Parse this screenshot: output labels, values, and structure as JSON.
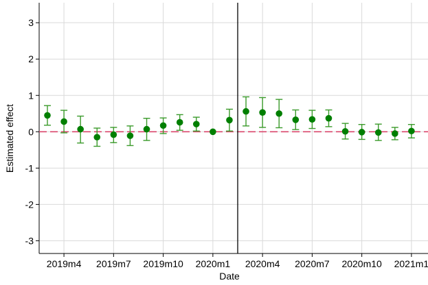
{
  "chart_data": {
    "type": "scatter",
    "title": "",
    "xlabel": "Date",
    "ylabel": "Estimated effect",
    "ylim": [
      -3.35,
      3.55
    ],
    "y_ticks": [
      "-3",
      "-2",
      "-1",
      "0",
      "1",
      "2",
      "3"
    ],
    "x_ticks": [
      "2019m4",
      "2019m7",
      "2019m10",
      "2020m1",
      "2020m4",
      "2020m7",
      "2020m10",
      "2021m1"
    ],
    "x_domain": [
      "2019m3",
      "2021m2"
    ],
    "event_line_x": "2020m2.5",
    "reference_line_y": 0,
    "grid": true,
    "series": [
      {
        "points": [
          {
            "x": "2019m3",
            "y": 0.45,
            "lo": 0.18,
            "hi": 0.72
          },
          {
            "x": "2019m4",
            "y": 0.28,
            "lo": -0.03,
            "hi": 0.59
          },
          {
            "x": "2019m5",
            "y": 0.07,
            "lo": -0.31,
            "hi": 0.43
          },
          {
            "x": "2019m6",
            "y": -0.15,
            "lo": -0.4,
            "hi": 0.1
          },
          {
            "x": "2019m7",
            "y": -0.08,
            "lo": -0.3,
            "hi": 0.12
          },
          {
            "x": "2019m8",
            "y": -0.11,
            "lo": -0.38,
            "hi": 0.16
          },
          {
            "x": "2019m9",
            "y": 0.07,
            "lo": -0.24,
            "hi": 0.37
          },
          {
            "x": "2019m10",
            "y": 0.17,
            "lo": -0.05,
            "hi": 0.38
          },
          {
            "x": "2019m11",
            "y": 0.26,
            "lo": 0.04,
            "hi": 0.47
          },
          {
            "x": "2019m12",
            "y": 0.21,
            "lo": 0.02,
            "hi": 0.4
          },
          {
            "x": "2020m1",
            "y": 0.0,
            "lo": 0.0,
            "hi": 0.0
          },
          {
            "x": "2020m2",
            "y": 0.32,
            "lo": 0.02,
            "hi": 0.62
          },
          {
            "x": "2020m3",
            "y": 0.56,
            "lo": 0.16,
            "hi": 0.96
          },
          {
            "x": "2020m4",
            "y": 0.53,
            "lo": 0.12,
            "hi": 0.94
          },
          {
            "x": "2020m5",
            "y": 0.5,
            "lo": 0.11,
            "hi": 0.89
          },
          {
            "x": "2020m6",
            "y": 0.33,
            "lo": 0.06,
            "hi": 0.6
          },
          {
            "x": "2020m7",
            "y": 0.34,
            "lo": 0.09,
            "hi": 0.59
          },
          {
            "x": "2020m8",
            "y": 0.37,
            "lo": 0.14,
            "hi": 0.6
          },
          {
            "x": "2020m9",
            "y": 0.01,
            "lo": -0.2,
            "hi": 0.23
          },
          {
            "x": "2020m10",
            "y": -0.01,
            "lo": -0.21,
            "hi": 0.2
          },
          {
            "x": "2020m11",
            "y": -0.02,
            "lo": -0.24,
            "hi": 0.21
          },
          {
            "x": "2020m12",
            "y": -0.05,
            "lo": -0.22,
            "hi": 0.12
          },
          {
            "x": "2021m1",
            "y": 0.02,
            "lo": -0.17,
            "hi": 0.2
          }
        ]
      }
    ],
    "colors": {
      "marker": "#007f00",
      "ci": "#3a9a2a",
      "reference_line": "#d9466b",
      "event_line": "#000000",
      "grid": "#d9d9d9",
      "axis": "#000000"
    }
  }
}
